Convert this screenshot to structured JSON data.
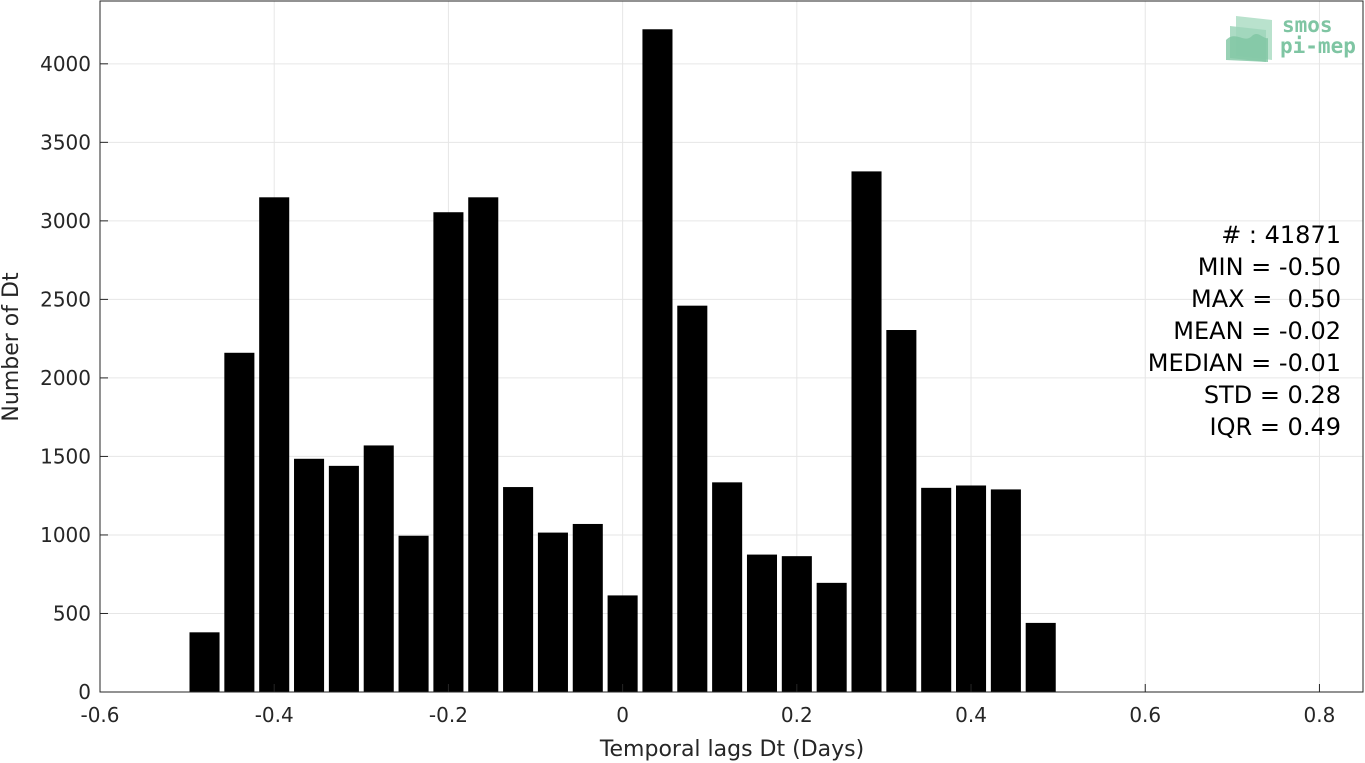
{
  "logo": {
    "line1": "smos",
    "line2": "pi-mep",
    "color": "#7fc5a3"
  },
  "stats": [
    "# : 41871",
    "MIN = -0.50",
    "MAX =  0.50",
    "MEAN = -0.02",
    "MEDIAN = -0.01",
    "STD = 0.28",
    "IQR = 0.49"
  ],
  "chart_data": {
    "type": "bar",
    "title": "",
    "xlabel": "Temporal lags Dt (Days)",
    "ylabel": "Number of Dt",
    "xlim": [
      -0.6,
      0.85
    ],
    "ylim": [
      0,
      4400
    ],
    "grid": true,
    "bar_width": 0.0345,
    "bar_color": "#000000",
    "x_ticks": [
      -0.6,
      -0.4,
      -0.2,
      0,
      0.2,
      0.4,
      0.6,
      0.8
    ],
    "x_tick_labels": [
      "-0.6",
      "-0.4",
      "-0.2",
      "0",
      "0.2",
      "0.4",
      "0.6",
      "0.8"
    ],
    "y_ticks": [
      0,
      500,
      1000,
      1500,
      2000,
      2500,
      3000,
      3500,
      4000
    ],
    "y_tick_labels": [
      "0",
      "500",
      "1000",
      "1500",
      "2000",
      "2500",
      "3000",
      "3500",
      "4000"
    ],
    "x": [
      -0.48,
      -0.44,
      -0.4,
      -0.36,
      -0.32,
      -0.28,
      -0.24,
      -0.2,
      -0.16,
      -0.12,
      -0.08,
      -0.04,
      0.0,
      0.04,
      0.08,
      0.12,
      0.16,
      0.2,
      0.24,
      0.28,
      0.32,
      0.36,
      0.4,
      0.44,
      0.48
    ],
    "values": [
      380,
      2160,
      3150,
      1485,
      1440,
      1570,
      995,
      3055,
      3150,
      1305,
      1015,
      1070,
      615,
      4220,
      2460,
      1335,
      875,
      865,
      695,
      3315,
      2305,
      1300,
      1315,
      1290,
      440
    ]
  }
}
